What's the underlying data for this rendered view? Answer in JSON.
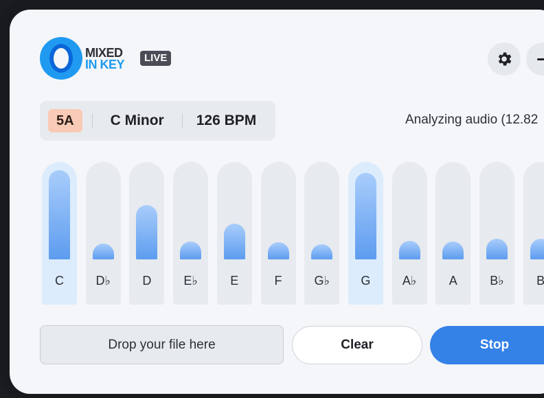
{
  "brand": {
    "line1": "MIXED",
    "line2": "IN KEY",
    "badge": "LIVE"
  },
  "colors": {
    "accent": "#3481e8",
    "camelot_bg": "#f9cbb6",
    "bar_fill": "#5d9cef",
    "active_column": "#dcecfd"
  },
  "header": {
    "settings_icon": "gear-icon",
    "minimize_icon": "minus-icon"
  },
  "key_info": {
    "camelot": "5A",
    "key": "C Minor",
    "bpm": "126 BPM"
  },
  "status": "Analyzing audio (12.82",
  "notes": [
    {
      "label": "C",
      "level": 1.0,
      "active": true
    },
    {
      "label": "D♭",
      "level": 0.18,
      "active": false
    },
    {
      "label": "D",
      "level": 0.61,
      "active": false
    },
    {
      "label": "E♭",
      "level": 0.2,
      "active": false
    },
    {
      "label": "E",
      "level": 0.4,
      "active": false
    },
    {
      "label": "F",
      "level": 0.19,
      "active": false
    },
    {
      "label": "G♭",
      "level": 0.16,
      "active": false
    },
    {
      "label": "G",
      "level": 0.97,
      "active": true
    },
    {
      "label": "A♭",
      "level": 0.21,
      "active": false
    },
    {
      "label": "A",
      "level": 0.2,
      "active": false
    },
    {
      "label": "B♭",
      "level": 0.23,
      "active": false
    },
    {
      "label": "B",
      "level": 0.23,
      "active": false
    }
  ],
  "actions": {
    "drop": "Drop your file here",
    "clear": "Clear",
    "stop": "Stop"
  }
}
